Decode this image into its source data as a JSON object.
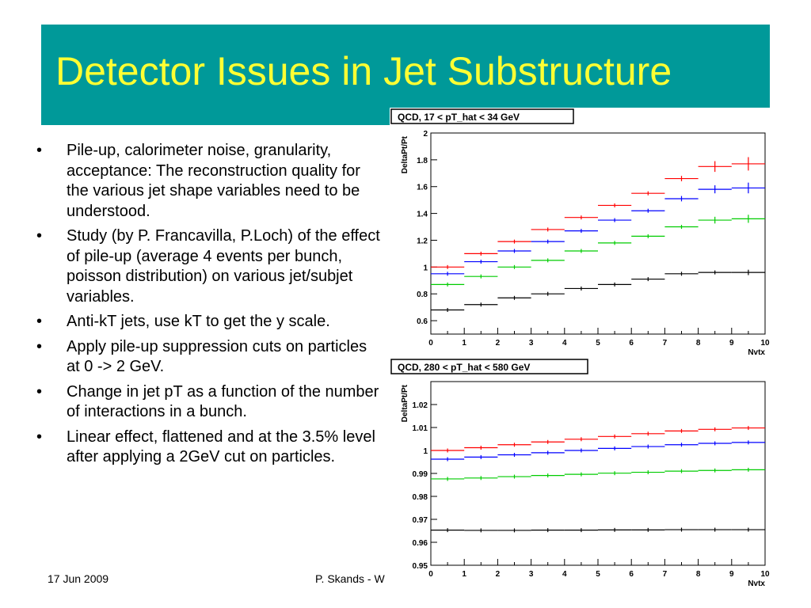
{
  "slide": {
    "title": "Detector Issues in Jet Substructure",
    "bullet_symbol": "•",
    "bullets": [
      "Pile-up, calorimeter noise, granularity, acceptance: The reconstruction quality for the various jet shape variables need to be understood.",
      "Study (by P. Francavilla, P.Loch) of the effect of pile-up (average 4 events per bunch, poisson distribution) on various jet/subjet variables.",
      "Anti-kT jets, use kT to get the y scale.",
      "Apply pile-up suppression cuts on particles at 0 -> 2 GeV.",
      "Change in jet pT as a function of the number of interactions in a bunch.",
      "Linear effect, flattened and at the 3.5% level after applying a 2GeV cut on particles."
    ],
    "footer_date": "17 Jun 2009",
    "footer_author": "P. Skands - W",
    "colors": {
      "title_bar": "#009999",
      "title_text": "#ffff33"
    }
  },
  "chart_data": [
    {
      "type": "line",
      "title": "QCD, 17 < pT_hat < 34 GeV",
      "xlabel": "Nvtx",
      "ylabel": "DeltaPt/Pt",
      "xlim": [
        0,
        10
      ],
      "ylim": [
        0.5,
        2.0
      ],
      "xticks": [
        0,
        1,
        2,
        3,
        4,
        5,
        6,
        7,
        8,
        9,
        10
      ],
      "yticks": [
        0.6,
        0.8,
        1.0,
        1.2,
        1.4,
        1.6,
        1.8,
        2.0
      ],
      "ytick_labels": [
        "0.6",
        "0.8",
        "1",
        "1.2",
        "1.4",
        "1.6",
        "1.8",
        "2"
      ],
      "grid": false,
      "bin_width": 1,
      "series": [
        {
          "color": "#ff0000",
          "values": [
            1.0,
            1.1,
            1.19,
            1.28,
            1.37,
            1.46,
            1.55,
            1.66,
            1.75,
            1.77
          ],
          "errors": [
            0.005,
            0.007,
            0.01,
            0.01,
            0.01,
            0.012,
            0.015,
            0.02,
            0.04,
            0.05
          ]
        },
        {
          "color": "#0000ff",
          "values": [
            0.95,
            1.04,
            1.12,
            1.19,
            1.27,
            1.35,
            1.42,
            1.51,
            1.58,
            1.59
          ],
          "errors": [
            0.005,
            0.007,
            0.01,
            0.01,
            0.01,
            0.012,
            0.015,
            0.02,
            0.03,
            0.04
          ]
        },
        {
          "color": "#00cc00",
          "values": [
            0.87,
            0.93,
            1.0,
            1.05,
            1.12,
            1.18,
            1.23,
            1.3,
            1.35,
            1.36
          ],
          "errors": [
            0.004,
            0.005,
            0.007,
            0.008,
            0.008,
            0.01,
            0.012,
            0.015,
            0.025,
            0.03
          ]
        },
        {
          "color": "#000000",
          "values": [
            0.68,
            0.72,
            0.77,
            0.8,
            0.84,
            0.87,
            0.91,
            0.95,
            0.96,
            0.96
          ],
          "errors": [
            0.003,
            0.004,
            0.005,
            0.005,
            0.006,
            0.007,
            0.008,
            0.01,
            0.015,
            0.02
          ]
        }
      ]
    },
    {
      "type": "line",
      "title": "QCD, 280 < pT_hat < 580 GeV",
      "xlabel": "Nvtx",
      "ylabel": "DeltaPt/Pt",
      "xlim": [
        0,
        10
      ],
      "ylim": [
        0.95,
        1.03
      ],
      "xticks": [
        0,
        1,
        2,
        3,
        4,
        5,
        6,
        7,
        8,
        9,
        10
      ],
      "yticks": [
        0.95,
        0.96,
        0.97,
        0.98,
        0.99,
        1.0,
        1.01,
        1.02
      ],
      "ytick_labels": [
        "0.95",
        "0.96",
        "0.97",
        "0.98",
        "0.99",
        "1",
        "1.01",
        "1.02"
      ],
      "grid": false,
      "bin_width": 1,
      "series": [
        {
          "color": "#ff0000",
          "values": [
            1.0,
            1.0012,
            1.0025,
            1.0037,
            1.0049,
            1.0061,
            1.0073,
            1.0085,
            1.0092,
            1.0098
          ],
          "errors": [
            0.0002,
            0.0002,
            0.0002,
            0.0002,
            0.0002,
            0.0002,
            0.0003,
            0.0003,
            0.0003,
            0.0003
          ]
        },
        {
          "color": "#0000ff",
          "values": [
            0.9962,
            0.9971,
            0.9981,
            0.999,
            1.0,
            1.0009,
            1.0017,
            1.0025,
            1.0031,
            1.0035
          ],
          "errors": [
            0.0002,
            0.0002,
            0.0002,
            0.0002,
            0.0002,
            0.0002,
            0.0003,
            0.0003,
            0.0003,
            0.0003
          ]
        },
        {
          "color": "#00cc00",
          "values": [
            0.9876,
            0.988,
            0.9886,
            0.9891,
            0.9896,
            0.9901,
            0.9905,
            0.991,
            0.9913,
            0.9916
          ],
          "errors": [
            0.0002,
            0.0002,
            0.0002,
            0.0002,
            0.0002,
            0.0002,
            0.0002,
            0.0003,
            0.0003,
            0.0003
          ]
        },
        {
          "color": "#000000",
          "values": [
            0.9653,
            0.9652,
            0.9652,
            0.9653,
            0.9653,
            0.9654,
            0.9654,
            0.9655,
            0.9655,
            0.9655
          ],
          "errors": [
            0.0002,
            0.0002,
            0.0002,
            0.0002,
            0.0002,
            0.0002,
            0.0002,
            0.0002,
            0.0002,
            0.0002
          ]
        }
      ]
    }
  ]
}
